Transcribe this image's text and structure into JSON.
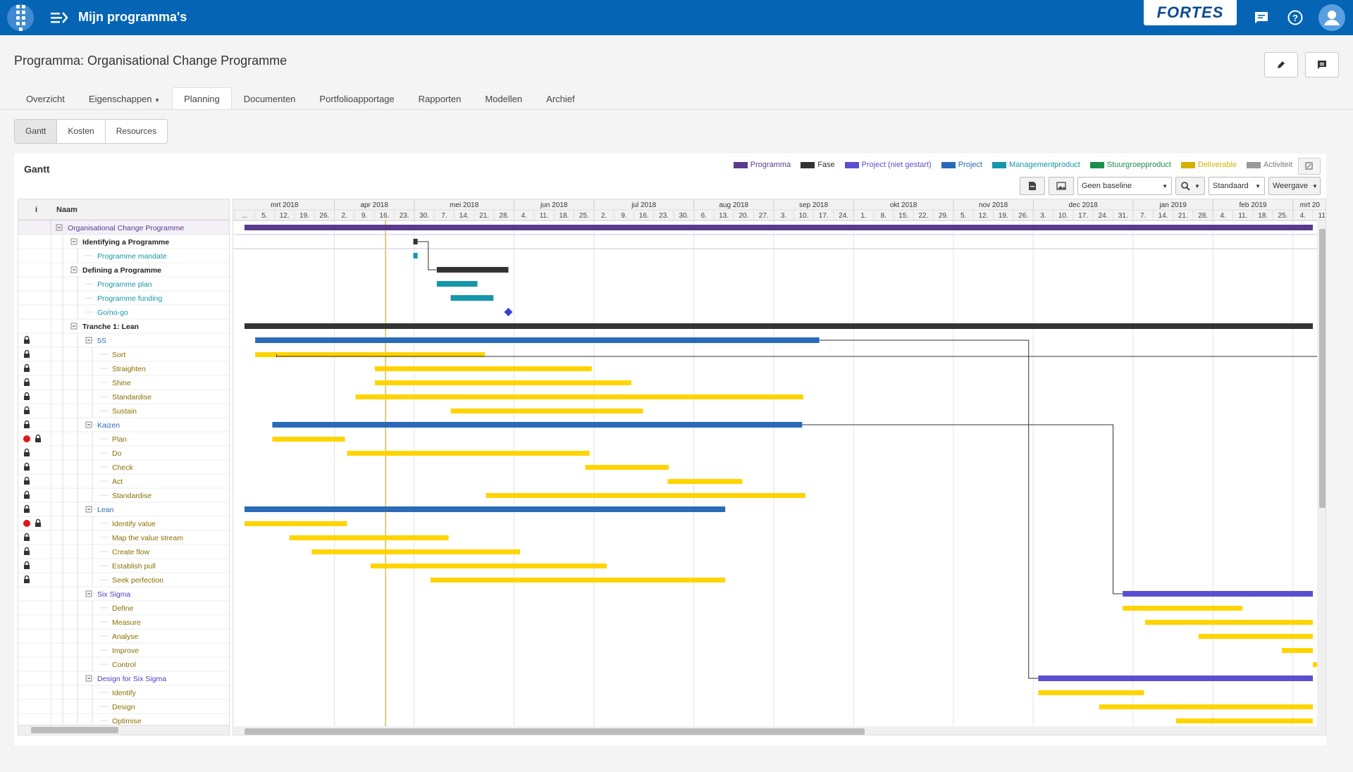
{
  "header": {
    "app_title": "Mijn programma's",
    "logo_text": "FORTES"
  },
  "page": {
    "title": "Programma: Organisational Change Programme"
  },
  "tabs": [
    {
      "label": "Overzicht"
    },
    {
      "label": "Eigenschappen"
    },
    {
      "label": "Planning",
      "active": true
    },
    {
      "label": "Documenten"
    },
    {
      "label": "Portfolioapportage"
    },
    {
      "label": "Rapporten"
    },
    {
      "label": "Modellen"
    },
    {
      "label": "Archief"
    }
  ],
  "subtabs": [
    {
      "label": "Gantt",
      "active": true
    },
    {
      "label": "Kosten"
    },
    {
      "label": "Resources"
    }
  ],
  "gantt": {
    "title": "Gantt",
    "legend": [
      {
        "label": "Programma",
        "color": "#5b3a8e"
      },
      {
        "label": "Fase",
        "color": "#333333"
      },
      {
        "label": "Project (niet gestart)",
        "color": "#5a4fd0"
      },
      {
        "label": "Project",
        "color": "#2a6ab7"
      },
      {
        "label": "Managementproduct",
        "color": "#1497a8"
      },
      {
        "label": "Stuurgroepproduct",
        "color": "#1a8f4d"
      },
      {
        "label": "Deliverable",
        "color": "#d4b000"
      },
      {
        "label": "Activiteit",
        "color": "#999999"
      }
    ],
    "toolbar": {
      "baseline": "Geen baseline",
      "view": "Standaard",
      "display": "Weergave"
    },
    "columns": {
      "info": "i",
      "name": "Naam"
    },
    "months": [
      "mrt 2018",
      "apr 2018",
      "mei 2018",
      "jun 2018",
      "jul 2018",
      "aug 2018",
      "sep 2018",
      "okt 2018",
      "nov 2018",
      "dec 2018",
      "jan 2019",
      "feb 2019",
      "mrt 20"
    ],
    "weeks": [
      "...",
      "5.",
      "12.",
      "19.",
      "26.",
      "2.",
      "9.",
      "16.",
      "23.",
      "30.",
      "7.",
      "14.",
      "21.",
      "28.",
      "4.",
      "11.",
      "18.",
      "25.",
      "2.",
      "9.",
      "16.",
      "23.",
      "30.",
      "6.",
      "13.",
      "20.",
      "27.",
      "3.",
      "10.",
      "17.",
      "24.",
      "1.",
      "8.",
      "15.",
      "22.",
      "29.",
      "5.",
      "12.",
      "19.",
      "26.",
      "3.",
      "10.",
      "17.",
      "24.",
      "31.",
      "7.",
      "14.",
      "21.",
      "28.",
      "4.",
      "11.",
      "18.",
      "25.",
      "4.",
      "11."
    ],
    "rows": [
      {
        "name": "Organisational Change Programme",
        "level": 0,
        "kind": "programma",
        "toggle": true,
        "s": 0,
        "e": 100
      },
      {
        "name": "Identifying a Programme",
        "level": 1,
        "kind": "fase",
        "toggle": true,
        "s": 15.8,
        "e": 16.2
      },
      {
        "name": "Programme mandate",
        "level": 2,
        "kind": "mgmt",
        "s": 15.8,
        "e": 16.2
      },
      {
        "name": "Defining a Programme",
        "level": 1,
        "kind": "fase",
        "toggle": true,
        "s": 18.0,
        "e": 24.7
      },
      {
        "name": "Programme plan",
        "level": 2,
        "kind": "mgmt",
        "s": 18.0,
        "e": 21.8
      },
      {
        "name": "Programme funding",
        "level": 2,
        "kind": "mgmt",
        "s": 19.3,
        "e": 23.3
      },
      {
        "name": "Go/no-go",
        "level": 2,
        "kind": "milestone",
        "s": 24.7,
        "e": 24.7
      },
      {
        "name": "Tranche 1: Lean",
        "level": 1,
        "kind": "fase",
        "toggle": true,
        "s": 0,
        "e": 100
      },
      {
        "name": "5S",
        "level": 2,
        "kind": "project",
        "toggle": true,
        "lock": true,
        "s": 1.0,
        "e": 53.8
      },
      {
        "name": "Sort",
        "level": 3,
        "kind": "deliv",
        "lock": true,
        "s": 1.0,
        "e": 22.5
      },
      {
        "name": "Straighten",
        "level": 3,
        "kind": "deliv",
        "lock": true,
        "s": 12.2,
        "e": 32.5
      },
      {
        "name": "Shine",
        "level": 3,
        "kind": "deliv",
        "lock": true,
        "s": 12.2,
        "e": 36.2
      },
      {
        "name": "Standardise",
        "level": 3,
        "kind": "deliv",
        "lock": true,
        "s": 10.4,
        "e": 52.3
      },
      {
        "name": "Sustain",
        "level": 3,
        "kind": "deliv",
        "lock": true,
        "s": 19.3,
        "e": 37.3
      },
      {
        "name": "Kaizen",
        "level": 2,
        "kind": "project",
        "toggle": true,
        "lock": true,
        "s": 2.6,
        "e": 52.2
      },
      {
        "name": "Plan",
        "level": 3,
        "kind": "deliv",
        "lock": true,
        "alert": true,
        "s": 2.6,
        "e": 9.4
      },
      {
        "name": "Do",
        "level": 3,
        "kind": "deliv",
        "lock": true,
        "s": 9.6,
        "e": 32.3
      },
      {
        "name": "Check",
        "level": 3,
        "kind": "deliv",
        "lock": true,
        "s": 31.9,
        "e": 39.7
      },
      {
        "name": "Act",
        "level": 3,
        "kind": "deliv",
        "lock": true,
        "s": 39.6,
        "e": 46.6
      },
      {
        "name": "Standardise",
        "level": 3,
        "kind": "deliv",
        "lock": true,
        "s": 22.6,
        "e": 52.5
      },
      {
        "name": "Lean",
        "level": 2,
        "kind": "project",
        "toggle": true,
        "lock": true,
        "s": 0,
        "e": 45.0
      },
      {
        "name": "Identify value",
        "level": 3,
        "kind": "deliv",
        "lock": true,
        "alert": true,
        "s": 0,
        "e": 9.6
      },
      {
        "name": "Map the value stream",
        "level": 3,
        "kind": "deliv",
        "lock": true,
        "s": 4.2,
        "e": 19.1
      },
      {
        "name": "Create flow",
        "level": 3,
        "kind": "deliv",
        "lock": true,
        "s": 6.3,
        "e": 25.8
      },
      {
        "name": "Establish pull",
        "level": 3,
        "kind": "deliv",
        "lock": true,
        "s": 11.8,
        "e": 33.9
      },
      {
        "name": "Seek perfection",
        "level": 3,
        "kind": "deliv",
        "lock": true,
        "s": 17.4,
        "e": 45.0
      },
      {
        "name": "Six Sigma",
        "level": 2,
        "kind": "notstarted",
        "toggle": true,
        "s": 82.2,
        "e": 100
      },
      {
        "name": "Define",
        "level": 3,
        "kind": "deliv",
        "s": 82.2,
        "e": 93.4
      },
      {
        "name": "Measure",
        "level": 3,
        "kind": "deliv",
        "s": 84.3,
        "e": 100
      },
      {
        "name": "Analyse",
        "level": 3,
        "kind": "deliv",
        "s": 89.3,
        "e": 100
      },
      {
        "name": "Improve",
        "level": 3,
        "kind": "deliv",
        "s": 97.1,
        "e": 100
      },
      {
        "name": "Control",
        "level": 3,
        "kind": "deliv",
        "s": 100,
        "e": 100
      },
      {
        "name": "Design for Six Sigma",
        "level": 2,
        "kind": "notstarted",
        "toggle": true,
        "s": 74.3,
        "e": 100
      },
      {
        "name": "Identify",
        "level": 3,
        "kind": "deliv",
        "s": 74.3,
        "e": 84.2
      },
      {
        "name": "Design",
        "level": 3,
        "kind": "deliv",
        "s": 80.0,
        "e": 100
      },
      {
        "name": "Optimise",
        "level": 3,
        "kind": "deliv",
        "s": 87.2,
        "e": 100
      }
    ]
  }
}
